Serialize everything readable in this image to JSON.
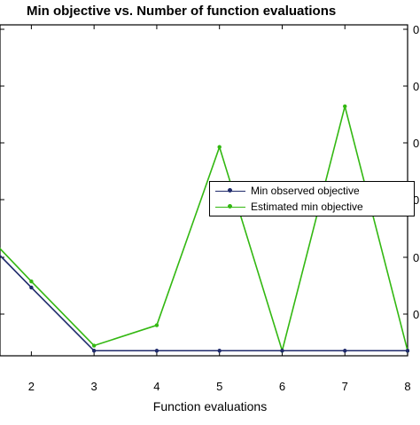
{
  "chart_data": {
    "type": "line",
    "title": "Min objective vs. Number of function evaluations",
    "xlabel": "Function evaluations",
    "ylabel": "",
    "x": [
      1,
      2,
      3,
      4,
      5,
      6,
      7,
      8
    ],
    "xlim": [
      1.5,
      8
    ],
    "ylim": [
      0,
      0.65
    ],
    "x_ticks": [
      "2",
      "3",
      "4",
      "5",
      "6",
      "7",
      "8"
    ],
    "y_ticks_right": [
      "0",
      "0",
      "0",
      "0",
      "0",
      "0"
    ],
    "series": [
      {
        "name": "Min observed objective",
        "color": "#1f2a6b",
        "marker": "dot",
        "values": [
          0.26,
          0.134,
          0.01,
          0.01,
          0.01,
          0.01,
          0.01,
          0.01
        ]
      },
      {
        "name": "Estimated min objective",
        "color": "#33b812",
        "marker": "dot",
        "values": [
          0.275,
          0.146,
          0.02,
          0.06,
          0.41,
          0.01,
          0.49,
          0.01
        ]
      }
    ],
    "legend": "center-right",
    "grid": false
  }
}
